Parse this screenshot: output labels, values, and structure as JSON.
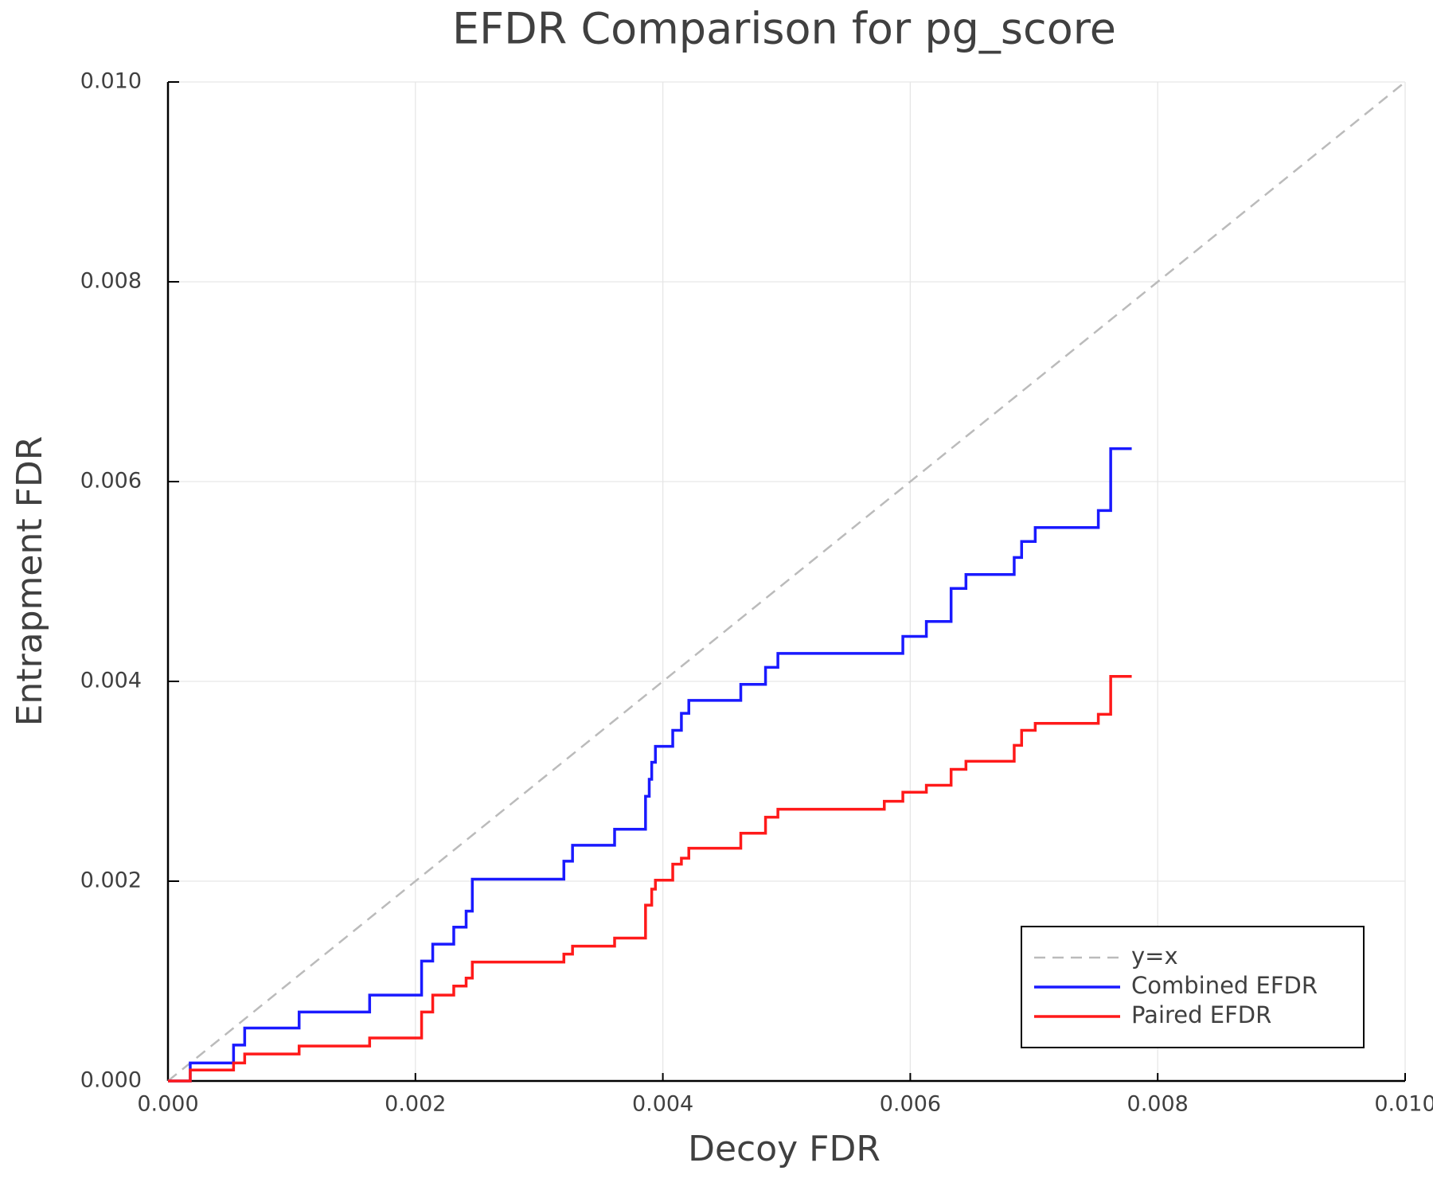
{
  "chart_data": {
    "type": "line",
    "title": "EFDR Comparison for pg_score",
    "x_label": "Decoy FDR",
    "y_label": "Entrapment FDR",
    "xlim": [
      0,
      0.01
    ],
    "ylim": [
      0,
      0.01
    ],
    "xticks": [
      {
        "value": 0,
        "label": "0.000"
      },
      {
        "value": 0.002,
        "label": "0.002"
      },
      {
        "value": 0.004,
        "label": "0.004"
      },
      {
        "value": 0.006,
        "label": "0.006"
      },
      {
        "value": 0.008,
        "label": "0.008"
      },
      {
        "value": 0.01,
        "label": "0.010"
      }
    ],
    "yticks": [
      {
        "value": 0,
        "label": "0.000"
      },
      {
        "value": 0.002,
        "label": "0.002"
      },
      {
        "value": 0.004,
        "label": "0.004"
      },
      {
        "value": 0.006,
        "label": "0.006"
      },
      {
        "value": 0.008,
        "label": "0.008"
      },
      {
        "value": 0.01,
        "label": "0.010"
      }
    ],
    "grid": true,
    "legend": "lower right",
    "series": [
      {
        "name": "y=x",
        "color": "#bbbbbb",
        "dash": true,
        "x": [
          0,
          0.01
        ],
        "values": [
          0,
          0.01
        ]
      },
      {
        "name": "Combined EFDR",
        "color": "#1a1aff",
        "dash": false,
        "x": [
          0,
          0.00018,
          0.00018,
          0.00053,
          0.00053,
          0.00062,
          0.00062,
          0.00106,
          0.00106,
          0.00163,
          0.00163,
          0.00205,
          0.00205,
          0.00214,
          0.00214,
          0.00231,
          0.00231,
          0.00241,
          0.00241,
          0.00246,
          0.00246,
          0.0032,
          0.0032,
          0.00327,
          0.00327,
          0.00361,
          0.00361,
          0.00386,
          0.00386,
          0.00389,
          0.00389,
          0.00391,
          0.00391,
          0.00394,
          0.00394,
          0.00408,
          0.00408,
          0.00415,
          0.00415,
          0.00421,
          0.00421,
          0.00463,
          0.00463,
          0.00483,
          0.00483,
          0.00493,
          0.00493,
          0.00594,
          0.00594,
          0.00613,
          0.00613,
          0.00633,
          0.00633,
          0.00645,
          0.00645,
          0.00684,
          0.00684,
          0.0069,
          0.0069,
          0.00701,
          0.00701,
          0.00752,
          0.00752,
          0.00762,
          0.00762,
          0.00779
        ],
        "values": [
          0,
          0,
          0.00018,
          0.00018,
          0.00036,
          0.00036,
          0.00053,
          0.00053,
          0.00069,
          0.00069,
          0.00086,
          0.00086,
          0.0012,
          0.0012,
          0.00137,
          0.00137,
          0.00154,
          0.00154,
          0.0017,
          0.0017,
          0.00202,
          0.00202,
          0.0022,
          0.0022,
          0.00236,
          0.00236,
          0.00252,
          0.00252,
          0.00285,
          0.00285,
          0.00302,
          0.00302,
          0.00319,
          0.00319,
          0.00335,
          0.00335,
          0.00351,
          0.00351,
          0.00368,
          0.00368,
          0.00381,
          0.00381,
          0.00397,
          0.00397,
          0.00414,
          0.00414,
          0.00428,
          0.00428,
          0.00445,
          0.00445,
          0.0046,
          0.0046,
          0.00493,
          0.00493,
          0.00507,
          0.00507,
          0.00524,
          0.00524,
          0.0054,
          0.0054,
          0.00554,
          0.00554,
          0.00571,
          0.00571,
          0.00633,
          0.00633
        ]
      },
      {
        "name": "Paired EFDR",
        "color": "#ff1a1a",
        "dash": false,
        "x": [
          0,
          0.00018,
          0.00018,
          0.00053,
          0.00053,
          0.00062,
          0.00062,
          0.00106,
          0.00106,
          0.00163,
          0.00163,
          0.00205,
          0.00205,
          0.00214,
          0.00214,
          0.00231,
          0.00231,
          0.00241,
          0.00241,
          0.00246,
          0.00246,
          0.0032,
          0.0032,
          0.00327,
          0.00327,
          0.00361,
          0.00361,
          0.00386,
          0.00386,
          0.00391,
          0.00391,
          0.00394,
          0.00394,
          0.00408,
          0.00408,
          0.00415,
          0.00415,
          0.00421,
          0.00421,
          0.00463,
          0.00463,
          0.00483,
          0.00483,
          0.00493,
          0.00493,
          0.00579,
          0.00579,
          0.00594,
          0.00594,
          0.00613,
          0.00613,
          0.00633,
          0.00633,
          0.00645,
          0.00645,
          0.00684,
          0.00684,
          0.0069,
          0.0069,
          0.00701,
          0.00701,
          0.00752,
          0.00752,
          0.00762,
          0.00762,
          0.00779
        ],
        "values": [
          0,
          0,
          0.00011,
          0.00011,
          0.00018,
          0.00018,
          0.00027,
          0.00027,
          0.00035,
          0.00035,
          0.00043,
          0.00043,
          0.00069,
          0.00069,
          0.00086,
          0.00086,
          0.00095,
          0.00095,
          0.00103,
          0.00103,
          0.00119,
          0.00119,
          0.00127,
          0.00127,
          0.00135,
          0.00135,
          0.00143,
          0.00143,
          0.00176,
          0.00176,
          0.00192,
          0.00192,
          0.00201,
          0.00201,
          0.00217,
          0.00217,
          0.00223,
          0.00223,
          0.00233,
          0.00233,
          0.00248,
          0.00248,
          0.00264,
          0.00264,
          0.00272,
          0.00272,
          0.0028,
          0.0028,
          0.00289,
          0.00289,
          0.00296,
          0.00296,
          0.00312,
          0.00312,
          0.0032,
          0.0032,
          0.00336,
          0.00336,
          0.00351,
          0.00351,
          0.00358,
          0.00358,
          0.00367,
          0.00367,
          0.00405,
          0.00405
        ]
      }
    ]
  }
}
